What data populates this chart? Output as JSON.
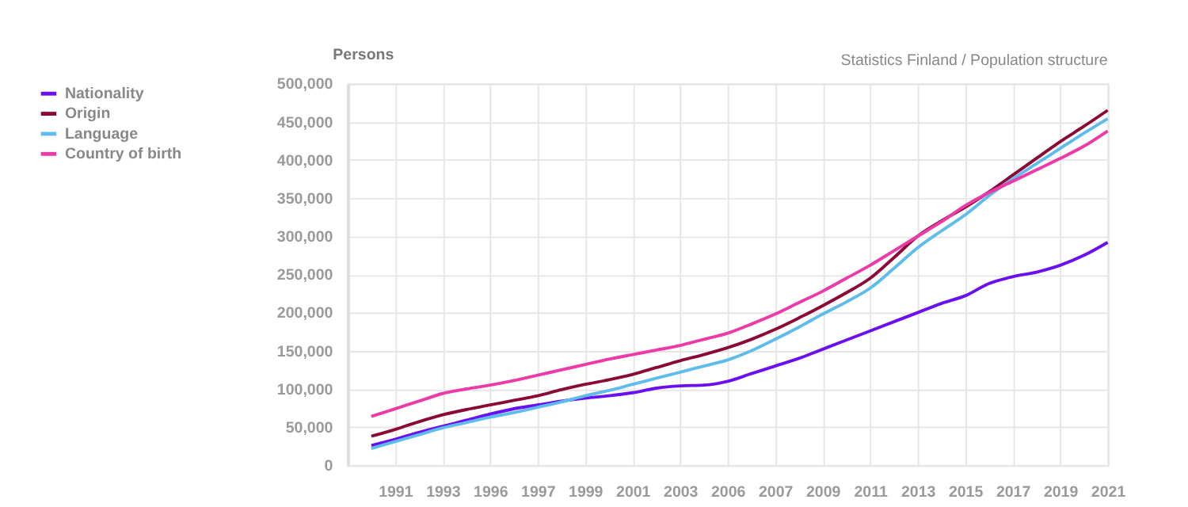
{
  "chart_data": {
    "type": "line",
    "ylabel": "Persons",
    "annotations": [
      "Statistics Finland / Population structure"
    ],
    "categories": [
      null,
      "1991",
      null,
      "1993",
      null,
      "1996",
      null,
      "1997",
      null,
      "1999",
      null,
      "2001",
      null,
      "2003",
      null,
      "2006",
      null,
      "2007",
      null,
      "2009",
      null,
      "2011",
      null,
      "2013",
      null,
      "2015",
      null,
      "2017",
      null,
      "2019",
      null,
      "2021"
    ],
    "series": [
      {
        "name": "Nationality",
        "color": "#6a10f0",
        "values": [
          26000,
          34000,
          43000,
          51000,
          59000,
          67000,
          74000,
          79000,
          84000,
          88000,
          91000,
          95000,
          101000,
          104000,
          105000,
          110000,
          120000,
          130000,
          140000,
          152000,
          164000,
          176000,
          188000,
          200000,
          212000,
          222000,
          238000,
          247000,
          253000,
          262000,
          275000,
          292000
        ]
      },
      {
        "name": "Origin",
        "color": "#8b0a35",
        "values": [
          38000,
          47000,
          57000,
          66000,
          73000,
          79000,
          85000,
          91000,
          99000,
          106000,
          112000,
          119000,
          128000,
          137000,
          145000,
          154000,
          165000,
          178000,
          193000,
          209000,
          226000,
          245000,
          272000,
          300000,
          320000,
          338000,
          358000,
          380000,
          402000,
          424000,
          444000,
          465000
        ]
      },
      {
        "name": "Language",
        "color": "#5ebcec",
        "values": [
          22000,
          31000,
          40000,
          49000,
          56000,
          63000,
          69000,
          76000,
          83000,
          91000,
          98000,
          106000,
          114000,
          122000,
          130000,
          138000,
          150000,
          165000,
          181000,
          198000,
          214000,
          232000,
          258000,
          285000,
          307000,
          328000,
          353000,
          375000,
          395000,
          415000,
          435000,
          454000
        ]
      },
      {
        "name": "Country of birth",
        "color": "#ec3aa8",
        "values": [
          64000,
          74000,
          84000,
          94000,
          100000,
          105000,
          111000,
          118000,
          125000,
          132000,
          139000,
          145000,
          151000,
          157000,
          165000,
          173000,
          185000,
          198000,
          213000,
          228000,
          245000,
          262000,
          281000,
          300000,
          319000,
          340000,
          357000,
          372000,
          387000,
          402000,
          418000,
          438000
        ]
      }
    ],
    "ylim": [
      0,
      500000
    ],
    "yticks": [
      0,
      {
        "value": 50000,
        "label": "50,000"
      },
      {
        "value": 100000,
        "label": "100,000"
      },
      {
        "value": 150000,
        "label": "150,000"
      },
      {
        "value": 200000,
        "label": "200,000"
      },
      {
        "value": 250000,
        "label": "250,000"
      },
      {
        "value": 300000,
        "label": "300,000"
      },
      {
        "value": 350000,
        "label": "350,000"
      },
      {
        "value": 400000,
        "label": "400,000"
      },
      {
        "value": 450000,
        "label": "450,000"
      },
      {
        "value": 500000,
        "label": "500,000"
      }
    ],
    "grid": true,
    "legend": "left",
    "line_style": "solid",
    "marker": "none"
  }
}
